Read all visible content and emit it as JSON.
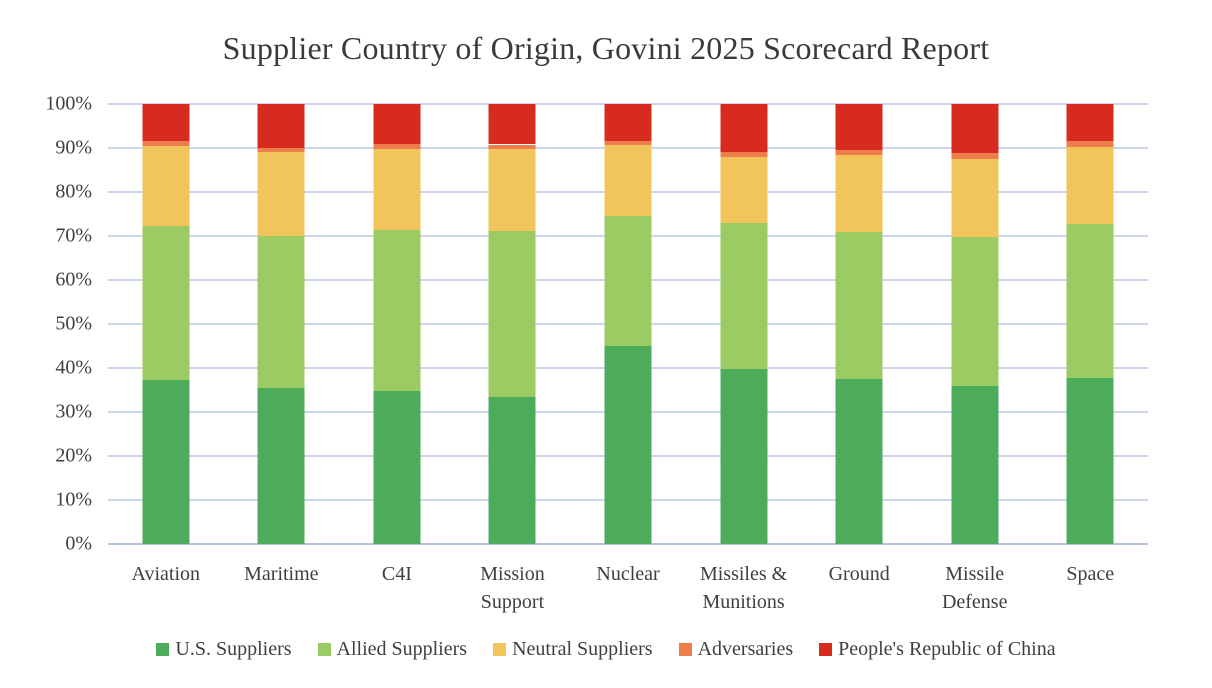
{
  "chart_data": {
    "type": "bar",
    "stacked": true,
    "percent_stacked": true,
    "title": "Supplier Country of Origin, Govini 2025 Scorecard Report",
    "categories": [
      "Aviation",
      "Maritime",
      "C4I",
      "Mission Support",
      "Nuclear",
      "Missiles & Munitions",
      "Ground",
      "Missile Defense",
      "Space"
    ],
    "series": [
      {
        "name": "U.S. Suppliers",
        "color": "#4CAC5C",
        "values": [
          37.2,
          35.5,
          34.8,
          33.5,
          44.9,
          39.7,
          37.4,
          36.0,
          37.8
        ]
      },
      {
        "name": "Allied Suppliers",
        "color": "#9CCB63",
        "values": [
          35.0,
          34.5,
          36.5,
          37.7,
          29.6,
          33.3,
          33.6,
          33.8,
          35.0
        ]
      },
      {
        "name": "Neutral Suppliers",
        "color": "#F2C45C",
        "values": [
          18.3,
          19.0,
          18.4,
          18.5,
          16.2,
          15.0,
          17.5,
          17.7,
          17.5
        ]
      },
      {
        "name": "Adversaries",
        "color": "#ED7D4B",
        "values": [
          1.2,
          1.0,
          1.3,
          1.1,
          1.0,
          1.2,
          1.0,
          1.3,
          1.2
        ]
      },
      {
        "name": "People's Republic of China",
        "color": "#D62B1E",
        "values": [
          8.3,
          10.0,
          9.0,
          9.2,
          8.3,
          10.8,
          10.5,
          11.2,
          8.5
        ]
      }
    ],
    "yticks": [
      "100%",
      "90%",
      "80%",
      "70%",
      "60%",
      "50%",
      "40%",
      "30%",
      "20%",
      "10%",
      "0%"
    ],
    "ylim": [
      0,
      100
    ],
    "grid": true,
    "gridline_color": "#CCD5EA",
    "legend_position": "bottom"
  }
}
